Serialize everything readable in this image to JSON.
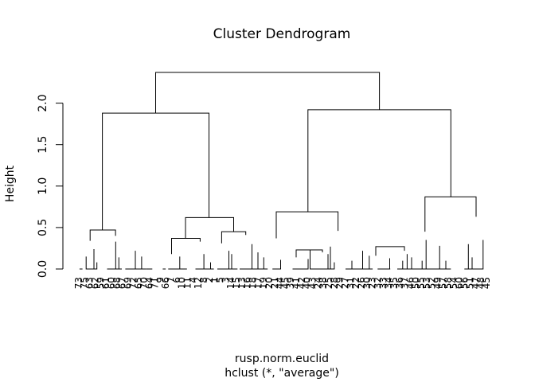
{
  "chart_data": {
    "type": "dendrogram",
    "title": "Cluster Dendrogram",
    "xlabel": "rusp.norm.euclid",
    "sublabel": "hclust (*, \"average\")",
    "ylabel": "Height",
    "yticks": [
      0.0,
      0.5,
      1.0,
      1.5,
      2.0
    ],
    "ytick_labels": [
      "0.0",
      "0.5",
      "1.0",
      "1.5",
      "2.0"
    ],
    "ylim": [
      0,
      2.38
    ],
    "line_color": "#000000",
    "merges": [
      [
        99.9,
        0.0,
        103.6,
        0.15,
        0.0,
        0.0
      ],
      [
        114.3,
        0.0,
        121.7,
        0.24,
        0.0,
        0.08
      ],
      [
        108.2,
        0.0,
        118.0,
        0.34,
        0.15,
        0.24
      ],
      [
        113.2,
        0.47,
        145.1,
        0.47,
        0.34,
        0.4
      ],
      [
        134.5,
        0.0,
        145.3,
        0.4,
        0.0,
        0.33
      ],
      [
        141.4,
        0.0,
        149.3,
        0.33,
        0.0,
        0.14
      ],
      [
        145.3,
        0.0,
        153.0,
        0.14,
        0.0,
        0.0
      ],
      [
        157.4,
        0.0,
        170.0,
        0.28,
        0.0,
        0.22
      ],
      [
        162.6,
        0.0,
        177.9,
        0.22,
        0.0,
        0.15
      ],
      [
        172.4,
        0.0,
        183.3,
        0.15,
        0.0,
        0.0
      ],
      [
        175.0,
        0.0,
        182.6,
        0.11,
        0.0,
        0.0
      ],
      [
        183.3,
        0.0,
        191.3,
        0.13,
        0.0,
        0.0
      ],
      [
        204.4,
        0.0,
        208.1,
        0.03,
        0.0,
        0.0
      ],
      [
        211.3,
        0.0,
        225.8,
        0.18,
        0.0,
        0.15
      ],
      [
        221.1,
        0.0,
        229.6,
        0.15,
        0.0,
        0.0
      ],
      [
        218.3,
        0.0,
        234.8,
        0.12,
        0.0,
        0.0
      ],
      [
        215.5,
        0.37,
        251.4,
        0.37,
        0.18,
        0.33
      ],
      [
        245.5,
        0.0,
        256.1,
        0.34,
        0.0,
        0.18
      ],
      [
        251.4,
        0.0,
        264.5,
        0.18,
        0.0,
        0.08
      ],
      [
        260.0,
        0.0,
        268.6,
        0.08,
        0.0,
        0.0
      ],
      [
        233.0,
        0.62,
        293.5,
        0.62,
        0.37,
        0.45
      ],
      [
        273.0,
        0.0,
        287.5,
        0.31,
        0.0,
        0.22
      ],
      [
        280.0,
        0.0,
        291.0,
        0.22,
        0.0,
        0.18
      ],
      [
        284.6,
        0.0,
        298.3,
        0.18,
        0.0,
        0.0
      ],
      [
        278.4,
        0.45,
        308.7,
        0.45,
        0.31,
        0.41
      ],
      [
        301.0,
        0.0,
        316.5,
        0.41,
        0.0,
        0.3
      ],
      [
        308.7,
        0.0,
        324.0,
        0.3,
        0.0,
        0.2
      ],
      [
        320.5,
        0.0,
        331.3,
        0.2,
        0.0,
        0.14
      ],
      [
        325.6,
        0.0,
        336.2,
        0.14,
        0.0,
        0.0
      ],
      [
        128.6,
        1.88,
        262.5,
        1.88,
        0.47,
        0.62
      ],
      [
        342.2,
        0.0,
        352.5,
        0.37,
        0.0,
        0.11
      ],
      [
        347.0,
        0.69,
        424.6,
        0.69,
        0.37,
        0.46
      ],
      [
        367.5,
        0.0,
        380.7,
        0.14,
        0.0,
        0.0
      ],
      [
        374.0,
        0.0,
        387.0,
        0.25,
        0.0,
        0.12
      ],
      [
        372.0,
        0.23,
        405.0,
        0.23,
        0.14,
        0.2
      ],
      [
        389.5,
        0.0,
        415.0,
        0.46,
        0.23,
        0.27
      ],
      [
        395.9,
        0.0,
        412.0,
        0.2,
        0.0,
        0.18
      ],
      [
        404.0,
        0.0,
        419.9,
        0.18,
        0.0,
        0.08
      ],
      [
        403.6,
        0.0,
        411.9,
        0.08,
        0.0,
        0.0
      ],
      [
        434.0,
        0.0,
        442.0,
        0.27,
        0.0,
        0.1
      ],
      [
        438.1,
        0.0,
        455.5,
        0.27,
        0.0,
        0.22
      ],
      [
        448.2,
        0.0,
        463.8,
        0.22,
        0.0,
        0.16
      ],
      [
        455.0,
        0.0,
        468.1,
        0.16,
        0.0,
        0.0
      ],
      [
        474.3,
        0.0,
        490.2,
        0.12,
        0.0,
        0.0
      ],
      [
        480.6,
        0.0,
        489.5,
        0.17,
        0.0,
        0.13
      ],
      [
        472.0,
        0.27,
        508.0,
        0.27,
        0.16,
        0.22
      ],
      [
        499.0,
        0.0,
        517.0,
        0.22,
        0.0,
        0.14
      ],
      [
        386.8,
        1.92,
        566.3,
        1.92,
        0.69,
        0.87
      ],
      [
        502.0,
        0.0,
        509.5,
        0.1,
        0.0,
        0.0
      ],
      [
        505.8,
        0.0,
        517.0,
        0.18,
        0.1,
        0.0
      ],
      [
        511.4,
        0.0,
        535.2,
        0.45,
        0.18,
        0.35
      ],
      [
        526.0,
        0.0,
        542.0,
        0.1,
        0.0,
        0.0
      ],
      [
        530.2,
        0.0,
        552.2,
        0.35,
        0.1,
        0.28
      ],
      [
        546.7,
        0.0,
        560.0,
        0.28,
        0.0,
        0.1
      ],
      [
        548.3,
        0.0,
        566.3,
        0.1,
        0.0,
        0.0
      ],
      [
        533.8,
        0.87,
        598.0,
        0.87,
        0.45,
        0.63
      ],
      [
        583.3,
        0.0,
        593.0,
        0.3,
        0.0,
        0.14
      ],
      [
        588.3,
        0.0,
        606.8,
        0.63,
        0.3,
        0.35
      ],
      [
        195.5,
        2.37,
        476.6,
        2.37,
        1.88,
        1.92
      ]
    ],
    "leaf_labels": [
      "73",
      "75",
      "63",
      "62",
      "59",
      "61",
      "60",
      "68",
      "67",
      "69",
      "72",
      "65",
      "70",
      "64",
      "71",
      "9",
      "66",
      "7",
      "6",
      "10",
      "11",
      "4",
      "12",
      "8",
      "2",
      "1",
      "5",
      "3",
      "14",
      "15",
      "13",
      "16",
      "18",
      "17",
      "19",
      "20",
      "21",
      "44",
      "45",
      "39",
      "41",
      "42",
      "40",
      "43",
      "24",
      "38",
      "25",
      "28",
      "29",
      "27",
      "31",
      "22",
      "26",
      "30",
      "23",
      "32",
      "33",
      "34",
      "35",
      "36",
      "37",
      "46",
      "50",
      "55",
      "53",
      "52",
      "49",
      "57",
      "58",
      "54",
      "60",
      "56",
      "51",
      "47",
      "48",
      "45"
    ]
  }
}
